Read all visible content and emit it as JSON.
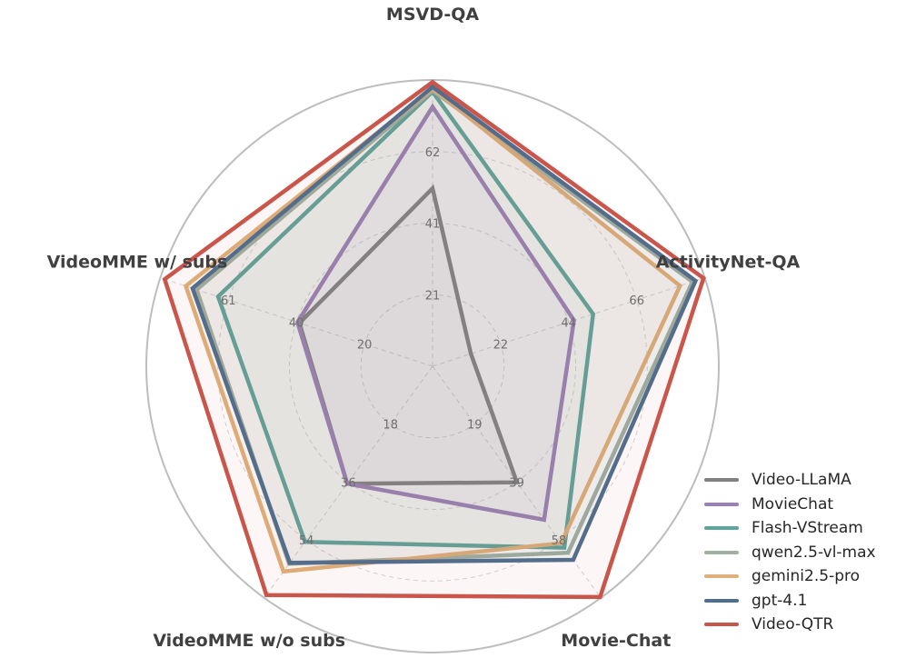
{
  "chart_data": {
    "type": "radar",
    "axes": [
      "MSVD-QA",
      "ActivityNet-QA",
      "Movie-Chat",
      "VideoMME w/o subs",
      "VideoMME w/ subs"
    ],
    "tick_labels": [
      [
        "21",
        "41",
        "62"
      ],
      [
        "22",
        "44",
        "66"
      ],
      [
        "19",
        "39",
        "58"
      ],
      [
        "18",
        "36",
        "54"
      ],
      [
        "20",
        "40",
        "61"
      ]
    ],
    "axis_max": [
      83,
      88,
      78,
      72,
      81
    ],
    "series": [
      {
        "name": "Video-LLaMA",
        "color": "#808080",
        "values": [
          51.6,
          12.4,
          39.1,
          36.5,
          39.6
        ]
      },
      {
        "name": "MovieChat",
        "color": "#9b7fbd",
        "values": [
          75.2,
          45.7,
          51.7,
          36.5,
          40.2
        ]
      },
      {
        "name": "Flash-VStream",
        "color": "#5aa59c",
        "values": [
          79.6,
          51.9,
          61.1,
          54.6,
          63.8
        ]
      },
      {
        "name": "qwen2.5-vl-max",
        "color": "#a0b1a4",
        "values": [
          80.0,
          84.0,
          62.8,
          61.4,
          70.2
        ]
      },
      {
        "name": "gemini2.5-pro",
        "color": "#e0b07a",
        "values": [
          80.5,
          80.0,
          59.6,
          63.8,
          73.4
        ]
      },
      {
        "name": "gpt-4.1",
        "color": "#4f6f8f",
        "values": [
          81.0,
          85.0,
          65.2,
          61.1,
          71.4
        ]
      },
      {
        "name": "Video-QTR",
        "color": "#c9554b",
        "values": [
          82.4,
          87.6,
          77.7,
          71.1,
          79.7
        ]
      }
    ],
    "grid": true,
    "legend_position": "bottom-right"
  }
}
